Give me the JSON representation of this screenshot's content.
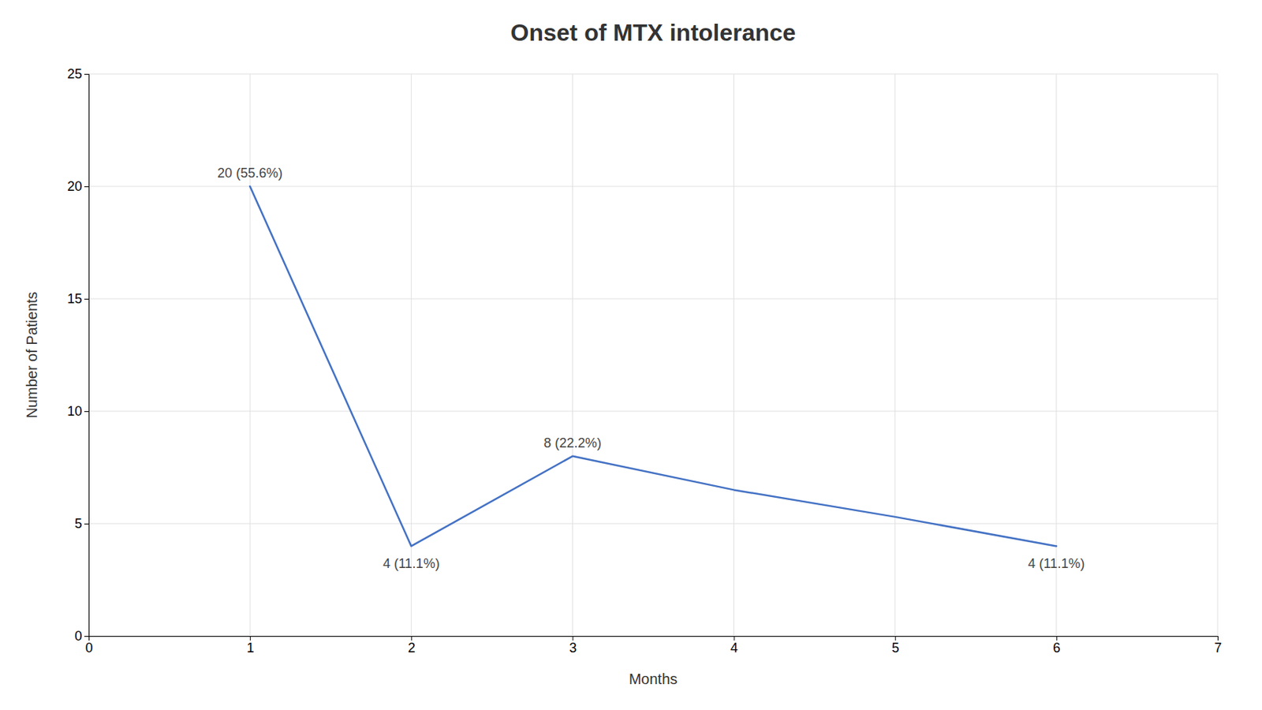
{
  "chart_data": {
    "type": "line",
    "title": "Onset of MTX intolerance",
    "xlabel": "Months",
    "ylabel": "Number of Patients",
    "x": [
      1,
      2,
      3,
      4,
      5,
      6
    ],
    "values": [
      20,
      4,
      8,
      6.5,
      5.3,
      4
    ],
    "color": "#4472c4",
    "xlim": [
      0,
      7
    ],
    "ylim": [
      0,
      25
    ],
    "xticks": [
      0,
      1,
      2,
      3,
      4,
      5,
      6,
      7
    ],
    "yticks": [
      0,
      5,
      10,
      15,
      20,
      25
    ],
    "grid": true,
    "annotations": [
      {
        "text": "20 (55.6%)",
        "x": 1,
        "y": 20
      },
      {
        "text": "4 (11.1%)",
        "x": 2,
        "y": 4
      },
      {
        "text": "8 (22.2%)",
        "x": 3,
        "y": 8
      },
      {
        "text": "4 (11.1%)",
        "x": 6,
        "y": 4
      }
    ]
  }
}
